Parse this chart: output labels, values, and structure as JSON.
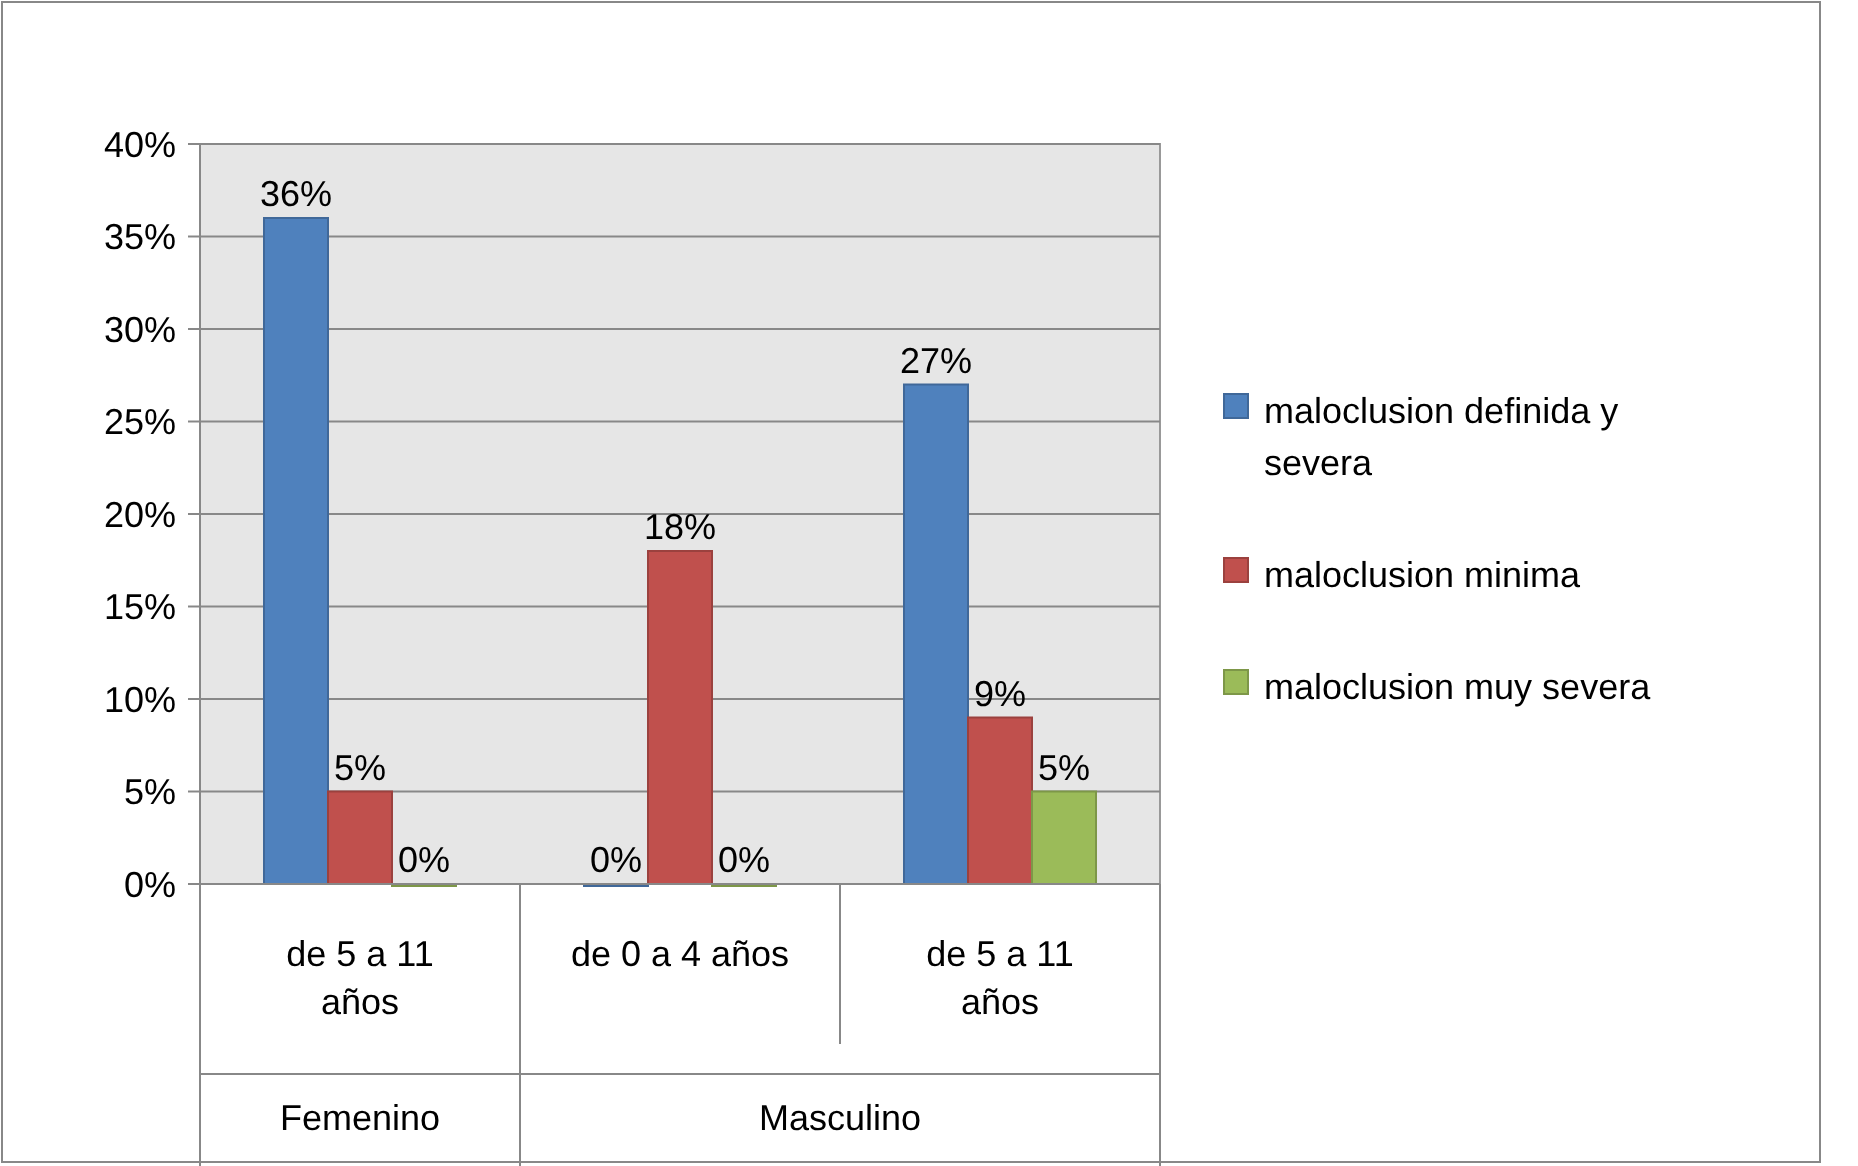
{
  "chart_data": {
    "type": "bar",
    "categories": [
      "de 5 a 11 años",
      "de 0 a 4 años",
      "de 5 a 11 años"
    ],
    "series": [
      {
        "name": "maloclusion definida y severa",
        "color": "#4f81bd",
        "values": [
          36,
          0,
          27
        ],
        "value_labels": [
          "36%",
          "0%",
          "27%"
        ]
      },
      {
        "name": "maloclusion minima",
        "color": "#c0504d",
        "values": [
          5,
          18,
          9
        ],
        "value_labels": [
          "5%",
          "18%",
          "9%"
        ]
      },
      {
        "name": "maloclusion muy severa",
        "color": "#9bbb59",
        "values": [
          0,
          0,
          5
        ],
        "value_labels": [
          "0%",
          "0%",
          "5%"
        ]
      }
    ],
    "ylim": [
      0,
      40
    ],
    "yticks": [
      {
        "value": 0,
        "label": "0%"
      },
      {
        "value": 5,
        "label": "5%"
      },
      {
        "value": 10,
        "label": "10%"
      },
      {
        "value": 15,
        "label": "15%"
      },
      {
        "value": 20,
        "label": "20%"
      },
      {
        "value": 25,
        "label": "25%"
      },
      {
        "value": 30,
        "label": "30%"
      },
      {
        "value": 35,
        "label": "35%"
      },
      {
        "value": 40,
        "label": "40%"
      }
    ],
    "grid": "y",
    "legend": "right",
    "annotations": [
      "Femenino",
      "Masculino"
    ]
  }
}
